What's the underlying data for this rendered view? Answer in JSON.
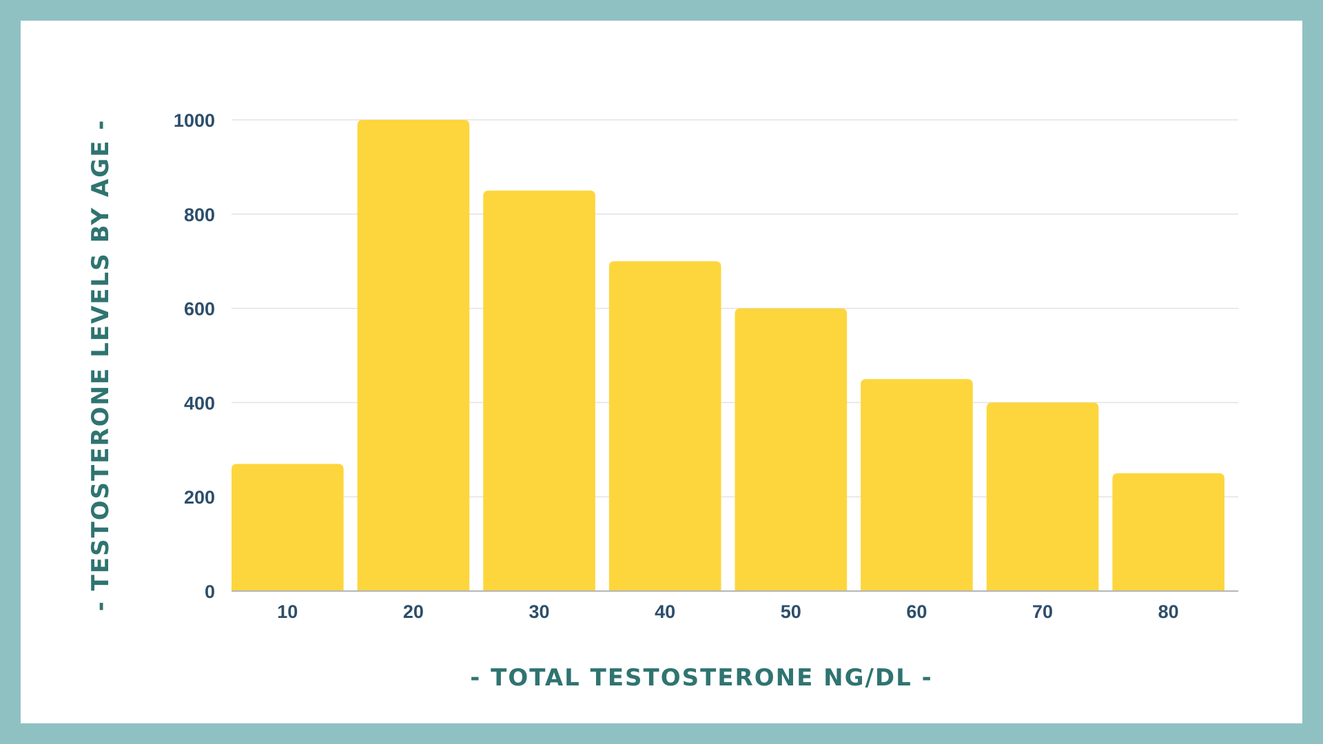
{
  "colors": {
    "frame": "#8fc1c3",
    "background": "#ffffff",
    "bar": "#fdd63d",
    "tick_text": "#2d4e6b",
    "axis_title_text": "#2f7471",
    "grid": "#e3e3e3",
    "baseline": "#b5b5b5"
  },
  "chart_data": {
    "type": "bar",
    "title": "",
    "xlabel": "- TOTAL TESTOSTERONE NG/DL -",
    "ylabel": "- TESTOSTERONE LEVELS BY AGE -",
    "categories": [
      "10",
      "20",
      "30",
      "40",
      "50",
      "60",
      "70",
      "80"
    ],
    "values": [
      270,
      1000,
      850,
      700,
      600,
      450,
      400,
      250
    ],
    "ylim": [
      0,
      1000
    ],
    "yticks": [
      0,
      200,
      400,
      600,
      800,
      1000
    ],
    "grid": true,
    "legend": "none"
  }
}
